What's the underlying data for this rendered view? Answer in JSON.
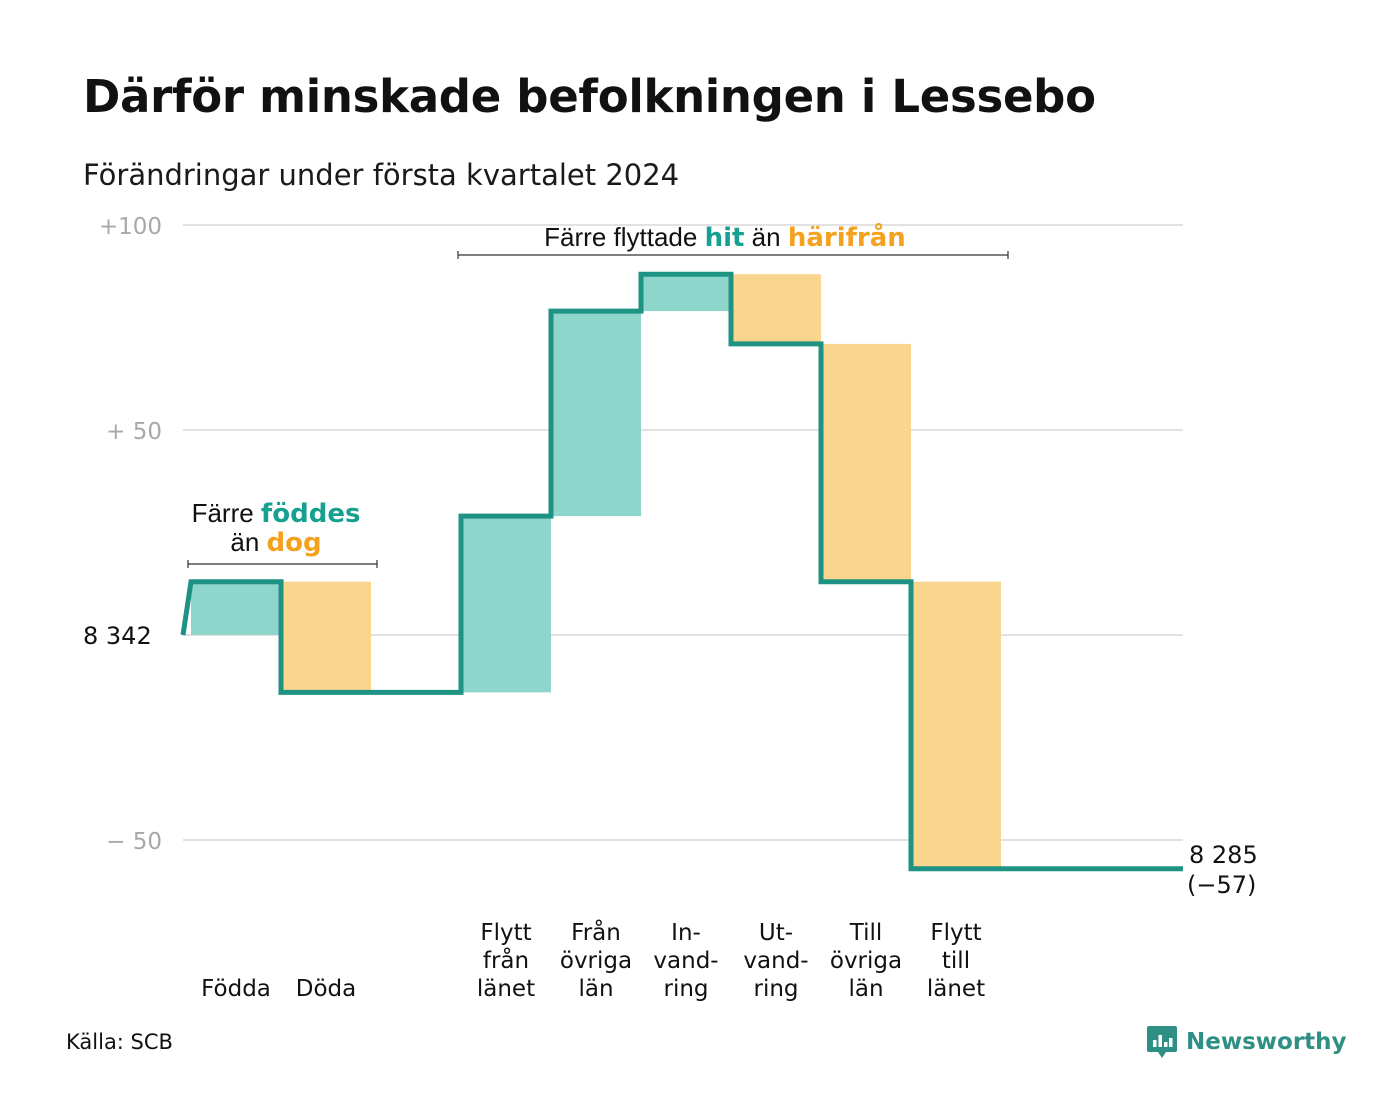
{
  "title": "Därför minskade befolkningen i Lessebo",
  "subtitle": "Förändringar under första kvartalet 2024",
  "source": "Källa: SCB",
  "logo": {
    "text": "Newsworthy",
    "icon": "newsworthy-chart-icon"
  },
  "colors": {
    "increase": "#8ed5cc",
    "decrease": "#fad58e",
    "line": "#1e9283",
    "grid": "#e2e2e2",
    "accent_teal": "#16a08f",
    "accent_orange": "#f4a11d",
    "tick": "#a8a8a8"
  },
  "annotations": {
    "births_deaths": {
      "line1_pre": "Färre",
      "line1_em": "föddes",
      "line2_pre": "än",
      "line2_em": "dog"
    },
    "migration": {
      "pre": "Färre flyttade",
      "em1": "hit",
      "mid": "än",
      "em2": "härifrån"
    }
  },
  "chart_data": {
    "type": "waterfall",
    "title": "Därför minskade befolkningen i Lessebo",
    "subtitle": "Förändringar under första kvartalet 2024",
    "start_value": 8342,
    "start_label": "8 342",
    "end_value": 8285,
    "end_label": "8 285",
    "end_change_label": "(−57)",
    "y_axis": {
      "min": -65,
      "max": 100,
      "ticks": [
        100,
        50,
        0,
        -50
      ],
      "tick_labels": [
        "+100",
        "+  50",
        "8  342",
        "−  50"
      ]
    },
    "grid": true,
    "steps": [
      {
        "label": [
          "Födda"
        ],
        "value": 13,
        "kind": "increase"
      },
      {
        "label": [
          "Döda"
        ],
        "value": -27,
        "kind": "decrease"
      },
      {
        "label": [],
        "value": 0,
        "kind": "gap"
      },
      {
        "label": [
          "Flytt",
          "från",
          "länet"
        ],
        "value": 43,
        "kind": "increase"
      },
      {
        "label": [
          "Från",
          "övriga",
          "län"
        ],
        "value": 50,
        "kind": "increase"
      },
      {
        "label": [
          "In-",
          "vand-",
          "ring"
        ],
        "value": 9,
        "kind": "increase"
      },
      {
        "label": [
          "Ut-",
          "vand-",
          "ring"
        ],
        "value": -17,
        "kind": "decrease"
      },
      {
        "label": [
          "Till",
          "övriga",
          "län"
        ],
        "value": -58,
        "kind": "decrease"
      },
      {
        "label": [
          "Flytt",
          "till",
          "länet"
        ],
        "value": -70,
        "kind": "decrease"
      },
      {
        "label": [],
        "value": 0,
        "kind": "gap"
      }
    ]
  }
}
